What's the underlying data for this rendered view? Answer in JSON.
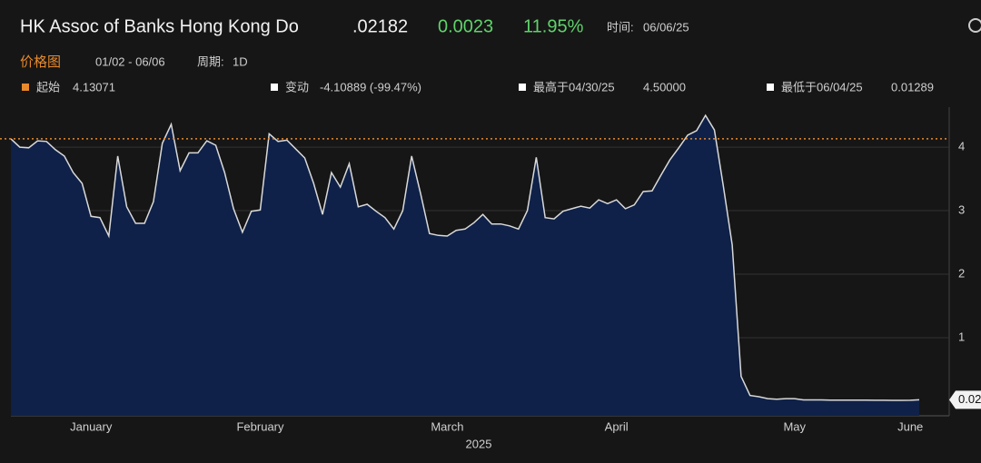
{
  "header": {
    "title": "HK Assoc of Banks Hong Kong Do",
    "price": ".02182",
    "change": "0.0023",
    "change_pct": "11.95%",
    "time_label": "时间:",
    "time": "06/06/25",
    "chart_label": "价格图",
    "range": "01/02 - 06/06",
    "period_label": "周期:",
    "period": "1D"
  },
  "stats": {
    "start_label": "起始",
    "start": "4.13071",
    "change_label": "变动",
    "change": "-4.10889 (-99.47%)",
    "high_label": "最高于04/30/25",
    "high": "4.50000",
    "low_label": "最低于06/04/25",
    "low": "0.01289"
  },
  "chart_data": {
    "type": "area",
    "xlabel": "2025",
    "color": "#d9d9d9",
    "fill": "#0f2148",
    "ref_value": 4.13071,
    "ref_color": "#e8892b",
    "last_label": "0.02",
    "grid": true,
    "categories": [
      null,
      null,
      null,
      null,
      null,
      null,
      null,
      null,
      null,
      "January",
      null,
      null,
      null,
      null,
      null,
      null,
      null,
      null,
      null,
      null,
      null,
      null,
      null,
      null,
      null,
      null,
      null,
      null,
      "February",
      null,
      null,
      null,
      null,
      null,
      null,
      null,
      null,
      null,
      null,
      null,
      null,
      null,
      null,
      null,
      null,
      null,
      null,
      null,
      null,
      "March",
      null,
      null,
      null,
      null,
      null,
      null,
      null,
      null,
      null,
      null,
      null,
      null,
      null,
      null,
      null,
      null,
      null,
      null,
      "April",
      null,
      null,
      null,
      null,
      null,
      null,
      null,
      null,
      null,
      null,
      null,
      null,
      null,
      null,
      null,
      null,
      null,
      null,
      null,
      "May",
      null,
      null,
      null,
      null,
      null,
      null,
      null,
      null,
      null,
      null,
      null,
      null,
      "June",
      null
    ],
    "values": [
      4.13071,
      4.0,
      3.99,
      4.1,
      4.09,
      3.96,
      3.86,
      3.6,
      3.43,
      2.91,
      2.89,
      2.6,
      3.86,
      3.06,
      2.8,
      2.8,
      3.14,
      4.06,
      4.36,
      3.63,
      3.91,
      3.91,
      4.1,
      4.03,
      3.6,
      3.03,
      2.66,
      2.99,
      3.01,
      4.21,
      4.09,
      4.11,
      3.97,
      3.83,
      3.43,
      2.94,
      3.6,
      3.37,
      3.74,
      3.06,
      3.1,
      2.99,
      2.89,
      2.71,
      3.0,
      3.86,
      3.27,
      2.64,
      2.61,
      2.6,
      2.69,
      2.71,
      2.81,
      2.94,
      2.79,
      2.79,
      2.76,
      2.71,
      3.0,
      3.84,
      2.89,
      2.87,
      2.99,
      3.03,
      3.07,
      3.04,
      3.17,
      3.11,
      3.17,
      3.03,
      3.09,
      3.3,
      3.31,
      3.56,
      3.8,
      3.99,
      4.19,
      4.26,
      4.5,
      4.27,
      3.39,
      2.46,
      0.39,
      0.09,
      0.07,
      0.04,
      0.03,
      0.04,
      0.04,
      0.02,
      0.02,
      0.02,
      0.018,
      0.018,
      0.017,
      0.016,
      0.016,
      0.015,
      0.014,
      0.013,
      0.01289,
      0.015,
      0.02182
    ],
    "ylim": [
      -0.23,
      4.63
    ],
    "yticks": [
      1,
      2,
      3,
      4
    ]
  }
}
